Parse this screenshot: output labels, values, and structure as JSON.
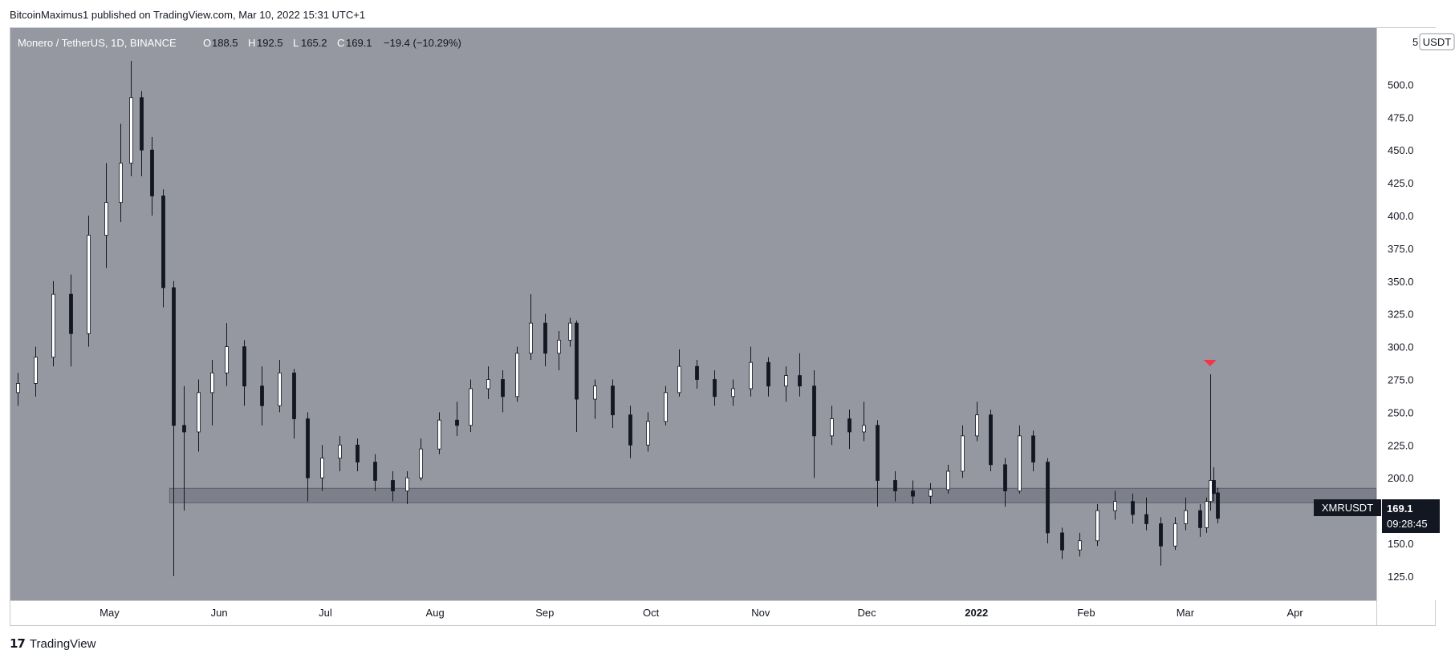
{
  "header": {
    "published": "BitcoinMaximus1 published on TradingView.com, Mar 10, 2022 15:31 UTC+1"
  },
  "legend": {
    "symbol": "Monero / TetherUS, 1D, BINANCE",
    "open_label": "O",
    "open": "188.5",
    "high_label": "H",
    "high": "192.5",
    "low_label": "L",
    "low": "165.2",
    "close_label": "C",
    "close": "169.1",
    "change": "−19.4 (−10.29%)"
  },
  "price_scale": {
    "currency": "USDT",
    "top_partial": "5"
  },
  "last_price": {
    "ticker": "XMRUSDT",
    "price": "169.1",
    "countdown": "09:28:45"
  },
  "colors": {
    "pane": "#9598a1",
    "candle": "#ffffff",
    "candle_border": "#131722",
    "zone": "#6a6d78",
    "marker": "#f23645",
    "label_bg": "#131722"
  },
  "footer": {
    "brand": "TradingView",
    "logo": "17"
  },
  "chart_data": {
    "type": "candlestick",
    "title": "Monero / TetherUS, 1D, BINANCE",
    "y_ticks": [
      125,
      150,
      175,
      200,
      225,
      250,
      275,
      300,
      325,
      350,
      375,
      400,
      425,
      450,
      475,
      500
    ],
    "ylim": [
      100,
      520
    ],
    "x_ticks": [
      {
        "label": "May",
        "date": "2021-05-01"
      },
      {
        "label": "Jun",
        "date": "2021-06-01"
      },
      {
        "label": "Jul",
        "date": "2021-07-01"
      },
      {
        "label": "Aug",
        "date": "2021-08-01"
      },
      {
        "label": "Sep",
        "date": "2021-09-01"
      },
      {
        "label": "Oct",
        "date": "2021-10-01"
      },
      {
        "label": "Nov",
        "date": "2021-11-01"
      },
      {
        "label": "Dec",
        "date": "2021-12-01"
      },
      {
        "label": "2022",
        "date": "2022-01-01",
        "bold": true
      },
      {
        "label": "Feb",
        "date": "2022-02-01"
      },
      {
        "label": "Mar",
        "date": "2022-03-01"
      },
      {
        "label": "Apr",
        "date": "2022-04-01"
      }
    ],
    "x_start": "2021-04-03",
    "x_end": "2022-04-24",
    "zone": {
      "from": "2021-05-18",
      "to": "2022-04-24",
      "low": 181,
      "high": 192
    },
    "marker": {
      "date": "2022-03-08",
      "price": 279,
      "type": "arrow-down"
    },
    "ohlc": [
      {
        "date": "2021-04-05",
        "o": 265,
        "h": 280,
        "l": 255,
        "c": 272
      },
      {
        "date": "2021-04-10",
        "o": 272,
        "h": 300,
        "l": 262,
        "c": 292
      },
      {
        "date": "2021-04-15",
        "o": 292,
        "h": 350,
        "l": 285,
        "c": 340
      },
      {
        "date": "2021-04-20",
        "o": 340,
        "h": 355,
        "l": 285,
        "c": 310
      },
      {
        "date": "2021-04-25",
        "o": 310,
        "h": 400,
        "l": 300,
        "c": 385
      },
      {
        "date": "2021-04-30",
        "o": 385,
        "h": 440,
        "l": 360,
        "c": 410
      },
      {
        "date": "2021-05-04",
        "o": 410,
        "h": 470,
        "l": 395,
        "c": 440
      },
      {
        "date": "2021-05-07",
        "o": 440,
        "h": 518,
        "l": 430,
        "c": 490
      },
      {
        "date": "2021-05-10",
        "o": 490,
        "h": 495,
        "l": 430,
        "c": 450
      },
      {
        "date": "2021-05-13",
        "o": 450,
        "h": 460,
        "l": 400,
        "c": 415
      },
      {
        "date": "2021-05-16",
        "o": 415,
        "h": 420,
        "l": 330,
        "c": 345
      },
      {
        "date": "2021-05-19",
        "o": 345,
        "h": 350,
        "l": 125,
        "c": 240
      },
      {
        "date": "2021-05-22",
        "o": 240,
        "h": 270,
        "l": 175,
        "c": 235
      },
      {
        "date": "2021-05-26",
        "o": 235,
        "h": 275,
        "l": 220,
        "c": 265
      },
      {
        "date": "2021-05-30",
        "o": 265,
        "h": 290,
        "l": 240,
        "c": 280
      },
      {
        "date": "2021-06-03",
        "o": 280,
        "h": 318,
        "l": 270,
        "c": 300
      },
      {
        "date": "2021-06-08",
        "o": 300,
        "h": 305,
        "l": 255,
        "c": 270
      },
      {
        "date": "2021-06-13",
        "o": 270,
        "h": 285,
        "l": 240,
        "c": 255
      },
      {
        "date": "2021-06-18",
        "o": 255,
        "h": 290,
        "l": 250,
        "c": 280
      },
      {
        "date": "2021-06-22",
        "o": 280,
        "h": 283,
        "l": 230,
        "c": 245
      },
      {
        "date": "2021-06-26",
        "o": 245,
        "h": 250,
        "l": 182,
        "c": 200
      },
      {
        "date": "2021-06-30",
        "o": 200,
        "h": 225,
        "l": 190,
        "c": 215
      },
      {
        "date": "2021-07-05",
        "o": 215,
        "h": 232,
        "l": 205,
        "c": 225
      },
      {
        "date": "2021-07-10",
        "o": 225,
        "h": 230,
        "l": 205,
        "c": 212
      },
      {
        "date": "2021-07-15",
        "o": 212,
        "h": 218,
        "l": 190,
        "c": 198
      },
      {
        "date": "2021-07-20",
        "o": 198,
        "h": 205,
        "l": 182,
        "c": 190
      },
      {
        "date": "2021-07-24",
        "o": 190,
        "h": 205,
        "l": 180,
        "c": 200
      },
      {
        "date": "2021-07-28",
        "o": 200,
        "h": 230,
        "l": 198,
        "c": 222
      },
      {
        "date": "2021-08-02",
        "o": 222,
        "h": 250,
        "l": 218,
        "c": 244
      },
      {
        "date": "2021-08-07",
        "o": 244,
        "h": 258,
        "l": 232,
        "c": 240
      },
      {
        "date": "2021-08-11",
        "o": 240,
        "h": 275,
        "l": 235,
        "c": 268
      },
      {
        "date": "2021-08-16",
        "o": 268,
        "h": 285,
        "l": 260,
        "c": 275
      },
      {
        "date": "2021-08-20",
        "o": 275,
        "h": 282,
        "l": 250,
        "c": 262
      },
      {
        "date": "2021-08-24",
        "o": 262,
        "h": 300,
        "l": 258,
        "c": 295
      },
      {
        "date": "2021-08-28",
        "o": 295,
        "h": 340,
        "l": 290,
        "c": 318
      },
      {
        "date": "2021-09-01",
        "o": 318,
        "h": 325,
        "l": 285,
        "c": 295
      },
      {
        "date": "2021-09-05",
        "o": 295,
        "h": 312,
        "l": 282,
        "c": 305
      },
      {
        "date": "2021-09-08",
        "o": 305,
        "h": 322,
        "l": 300,
        "c": 318
      },
      {
        "date": "2021-09-10",
        "o": 318,
        "h": 320,
        "l": 235,
        "c": 260
      },
      {
        "date": "2021-09-15",
        "o": 260,
        "h": 275,
        "l": 245,
        "c": 270
      },
      {
        "date": "2021-09-20",
        "o": 270,
        "h": 275,
        "l": 238,
        "c": 248
      },
      {
        "date": "2021-09-25",
        "o": 248,
        "h": 255,
        "l": 215,
        "c": 225
      },
      {
        "date": "2021-09-30",
        "o": 225,
        "h": 250,
        "l": 220,
        "c": 243
      },
      {
        "date": "2021-10-05",
        "o": 243,
        "h": 270,
        "l": 240,
        "c": 265
      },
      {
        "date": "2021-10-09",
        "o": 265,
        "h": 298,
        "l": 262,
        "c": 285
      },
      {
        "date": "2021-10-14",
        "o": 285,
        "h": 290,
        "l": 268,
        "c": 275
      },
      {
        "date": "2021-10-19",
        "o": 275,
        "h": 282,
        "l": 255,
        "c": 262
      },
      {
        "date": "2021-10-24",
        "o": 262,
        "h": 275,
        "l": 255,
        "c": 268
      },
      {
        "date": "2021-10-29",
        "o": 268,
        "h": 300,
        "l": 262,
        "c": 288
      },
      {
        "date": "2021-11-03",
        "o": 288,
        "h": 292,
        "l": 262,
        "c": 270
      },
      {
        "date": "2021-11-08",
        "o": 270,
        "h": 285,
        "l": 258,
        "c": 278
      },
      {
        "date": "2021-11-12",
        "o": 278,
        "h": 295,
        "l": 262,
        "c": 270
      },
      {
        "date": "2021-11-16",
        "o": 270,
        "h": 282,
        "l": 200,
        "c": 232
      },
      {
        "date": "2021-11-21",
        "o": 232,
        "h": 255,
        "l": 225,
        "c": 245
      },
      {
        "date": "2021-11-26",
        "o": 245,
        "h": 252,
        "l": 222,
        "c": 235
      },
      {
        "date": "2021-11-30",
        "o": 235,
        "h": 258,
        "l": 228,
        "c": 240
      },
      {
        "date": "2021-12-04",
        "o": 240,
        "h": 244,
        "l": 178,
        "c": 198
      },
      {
        "date": "2021-12-09",
        "o": 198,
        "h": 205,
        "l": 182,
        "c": 190
      },
      {
        "date": "2021-12-14",
        "o": 190,
        "h": 198,
        "l": 180,
        "c": 186
      },
      {
        "date": "2021-12-19",
        "o": 186,
        "h": 196,
        "l": 180,
        "c": 191
      },
      {
        "date": "2021-12-24",
        "o": 191,
        "h": 210,
        "l": 188,
        "c": 205
      },
      {
        "date": "2021-12-28",
        "o": 205,
        "h": 240,
        "l": 200,
        "c": 232
      },
      {
        "date": "2022-01-01",
        "o": 232,
        "h": 258,
        "l": 228,
        "c": 248
      },
      {
        "date": "2022-01-05",
        "o": 248,
        "h": 252,
        "l": 205,
        "c": 210
      },
      {
        "date": "2022-01-09",
        "o": 210,
        "h": 215,
        "l": 178,
        "c": 190
      },
      {
        "date": "2022-01-13",
        "o": 190,
        "h": 240,
        "l": 188,
        "c": 232
      },
      {
        "date": "2022-01-17",
        "o": 232,
        "h": 236,
        "l": 205,
        "c": 212
      },
      {
        "date": "2022-01-21",
        "o": 212,
        "h": 215,
        "l": 150,
        "c": 158
      },
      {
        "date": "2022-01-25",
        "o": 158,
        "h": 162,
        "l": 138,
        "c": 145
      },
      {
        "date": "2022-01-30",
        "o": 145,
        "h": 158,
        "l": 140,
        "c": 152
      },
      {
        "date": "2022-02-04",
        "o": 152,
        "h": 180,
        "l": 148,
        "c": 175
      },
      {
        "date": "2022-02-09",
        "o": 175,
        "h": 190,
        "l": 168,
        "c": 182
      },
      {
        "date": "2022-02-14",
        "o": 182,
        "h": 188,
        "l": 165,
        "c": 172
      },
      {
        "date": "2022-02-18",
        "o": 172,
        "h": 185,
        "l": 160,
        "c": 165
      },
      {
        "date": "2022-02-22",
        "o": 165,
        "h": 170,
        "l": 133,
        "c": 148
      },
      {
        "date": "2022-02-26",
        "o": 148,
        "h": 170,
        "l": 145,
        "c": 165
      },
      {
        "date": "2022-03-01",
        "o": 165,
        "h": 185,
        "l": 160,
        "c": 175
      },
      {
        "date": "2022-03-05",
        "o": 175,
        "h": 180,
        "l": 155,
        "c": 162
      },
      {
        "date": "2022-03-07",
        "o": 162,
        "h": 185,
        "l": 158,
        "c": 182
      },
      {
        "date": "2022-03-08",
        "o": 182,
        "h": 279,
        "l": 175,
        "c": 198
      },
      {
        "date": "2022-03-09",
        "o": 198,
        "h": 208,
        "l": 182,
        "c": 188
      },
      {
        "date": "2022-03-10",
        "o": 188.5,
        "h": 192.5,
        "l": 165.2,
        "c": 169.1
      }
    ]
  }
}
